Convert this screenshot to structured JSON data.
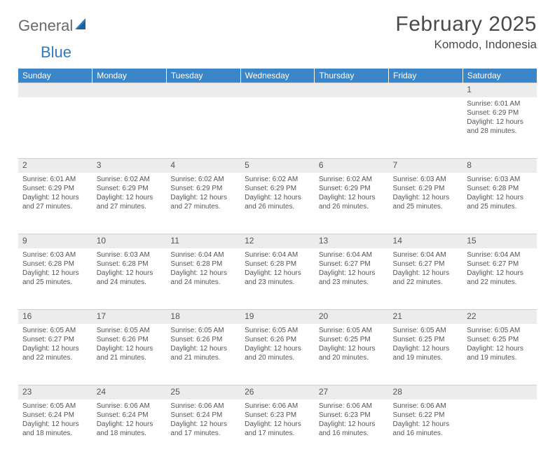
{
  "logo": {
    "part1": "General",
    "part2": "Blue"
  },
  "title": "February 2025",
  "location": "Komodo, Indonesia",
  "colors": {
    "header_bg": "#3a86c8",
    "header_text": "#ffffff",
    "daynum_bg": "#ececec",
    "body_bg": "#ffffff",
    "text": "#555555",
    "logo_gray": "#6a6a6a",
    "logo_blue": "#2f7bbf"
  },
  "weekdays": [
    "Sunday",
    "Monday",
    "Tuesday",
    "Wednesday",
    "Thursday",
    "Friday",
    "Saturday"
  ],
  "weeks": [
    [
      null,
      null,
      null,
      null,
      null,
      null,
      {
        "n": "1",
        "sr": "6:01 AM",
        "ss": "6:29 PM",
        "dl": "12 hours and 28 minutes."
      }
    ],
    [
      {
        "n": "2",
        "sr": "6:01 AM",
        "ss": "6:29 PM",
        "dl": "12 hours and 27 minutes."
      },
      {
        "n": "3",
        "sr": "6:02 AM",
        "ss": "6:29 PM",
        "dl": "12 hours and 27 minutes."
      },
      {
        "n": "4",
        "sr": "6:02 AM",
        "ss": "6:29 PM",
        "dl": "12 hours and 27 minutes."
      },
      {
        "n": "5",
        "sr": "6:02 AM",
        "ss": "6:29 PM",
        "dl": "12 hours and 26 minutes."
      },
      {
        "n": "6",
        "sr": "6:02 AM",
        "ss": "6:29 PM",
        "dl": "12 hours and 26 minutes."
      },
      {
        "n": "7",
        "sr": "6:03 AM",
        "ss": "6:29 PM",
        "dl": "12 hours and 25 minutes."
      },
      {
        "n": "8",
        "sr": "6:03 AM",
        "ss": "6:28 PM",
        "dl": "12 hours and 25 minutes."
      }
    ],
    [
      {
        "n": "9",
        "sr": "6:03 AM",
        "ss": "6:28 PM",
        "dl": "12 hours and 25 minutes."
      },
      {
        "n": "10",
        "sr": "6:03 AM",
        "ss": "6:28 PM",
        "dl": "12 hours and 24 minutes."
      },
      {
        "n": "11",
        "sr": "6:04 AM",
        "ss": "6:28 PM",
        "dl": "12 hours and 24 minutes."
      },
      {
        "n": "12",
        "sr": "6:04 AM",
        "ss": "6:28 PM",
        "dl": "12 hours and 23 minutes."
      },
      {
        "n": "13",
        "sr": "6:04 AM",
        "ss": "6:27 PM",
        "dl": "12 hours and 23 minutes."
      },
      {
        "n": "14",
        "sr": "6:04 AM",
        "ss": "6:27 PM",
        "dl": "12 hours and 22 minutes."
      },
      {
        "n": "15",
        "sr": "6:04 AM",
        "ss": "6:27 PM",
        "dl": "12 hours and 22 minutes."
      }
    ],
    [
      {
        "n": "16",
        "sr": "6:05 AM",
        "ss": "6:27 PM",
        "dl": "12 hours and 22 minutes."
      },
      {
        "n": "17",
        "sr": "6:05 AM",
        "ss": "6:26 PM",
        "dl": "12 hours and 21 minutes."
      },
      {
        "n": "18",
        "sr": "6:05 AM",
        "ss": "6:26 PM",
        "dl": "12 hours and 21 minutes."
      },
      {
        "n": "19",
        "sr": "6:05 AM",
        "ss": "6:26 PM",
        "dl": "12 hours and 20 minutes."
      },
      {
        "n": "20",
        "sr": "6:05 AM",
        "ss": "6:25 PM",
        "dl": "12 hours and 20 minutes."
      },
      {
        "n": "21",
        "sr": "6:05 AM",
        "ss": "6:25 PM",
        "dl": "12 hours and 19 minutes."
      },
      {
        "n": "22",
        "sr": "6:05 AM",
        "ss": "6:25 PM",
        "dl": "12 hours and 19 minutes."
      }
    ],
    [
      {
        "n": "23",
        "sr": "6:05 AM",
        "ss": "6:24 PM",
        "dl": "12 hours and 18 minutes."
      },
      {
        "n": "24",
        "sr": "6:06 AM",
        "ss": "6:24 PM",
        "dl": "12 hours and 18 minutes."
      },
      {
        "n": "25",
        "sr": "6:06 AM",
        "ss": "6:24 PM",
        "dl": "12 hours and 17 minutes."
      },
      {
        "n": "26",
        "sr": "6:06 AM",
        "ss": "6:23 PM",
        "dl": "12 hours and 17 minutes."
      },
      {
        "n": "27",
        "sr": "6:06 AM",
        "ss": "6:23 PM",
        "dl": "12 hours and 16 minutes."
      },
      {
        "n": "28",
        "sr": "6:06 AM",
        "ss": "6:22 PM",
        "dl": "12 hours and 16 minutes."
      },
      null
    ]
  ],
  "labels": {
    "sunrise": "Sunrise:",
    "sunset": "Sunset:",
    "daylight": "Daylight:"
  }
}
